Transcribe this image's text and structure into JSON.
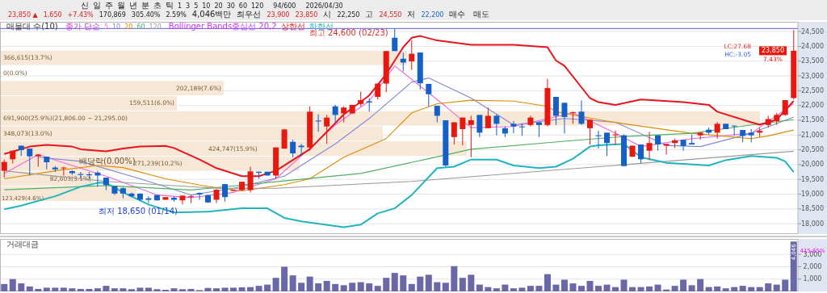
{
  "chart_data": [
    {
      "type": "other",
      "annotations": [
        "신",
        "일",
        "주",
        "월",
        "년",
        "분",
        "초",
        "틱",
        "1",
        "3",
        "5",
        "10",
        "20",
        "30",
        "60",
        "120",
        "94/600",
        "2026/04/30",
        "23,850 ▲",
        "1,650",
        "+7.43%",
        "170,869",
        "305.40%",
        "2.59%",
        "4,046백만",
        "최우선",
        "23,900",
        "23,850",
        "시",
        "22,250",
        "고",
        "24,550",
        "저",
        "22,200",
        "매수",
        "매도"
      ]
    },
    {
      "type": "candlestick",
      "title": "매물대 수(10)",
      "legend_title": "종가 단순",
      "legend": "top left",
      "grid": "y",
      "tick_labels": "y",
      "categories": [
        null,
        null,
        null,
        null,
        null,
        null,
        null,
        null,
        null,
        null,
        null,
        null,
        null,
        null,
        null,
        null,
        null,
        null,
        null,
        null,
        null,
        null,
        null,
        null,
        null,
        null,
        null,
        null,
        null,
        null,
        null,
        null,
        null,
        null,
        null,
        null,
        null,
        null,
        null,
        null,
        null,
        null,
        null,
        null,
        null,
        null,
        null,
        null,
        null,
        null,
        null,
        null,
        null,
        null,
        null,
        null,
        null,
        null,
        null,
        null,
        null,
        null,
        null,
        null,
        null,
        null,
        null,
        null,
        null,
        null,
        null,
        null,
        null,
        null,
        null,
        null,
        null,
        null,
        null,
        null,
        null,
        null,
        null,
        null,
        null,
        null,
        null,
        null,
        null,
        null,
        null,
        null,
        null,
        null
      ],
      "ohlc": [
        [
          19790,
          20170,
          19560,
          20090
        ],
        [
          20180,
          20470,
          20040,
          20470
        ],
        [
          20640,
          20640,
          20290,
          20490
        ],
        [
          20540,
          20540,
          19630,
          20280
        ],
        [
          20280,
          20340,
          19930,
          20340
        ],
        [
          20270,
          20270,
          19840,
          20080
        ],
        [
          19900,
          19950,
          19750,
          19840
        ],
        [
          19880,
          19930,
          19630,
          19900
        ],
        [
          19780,
          19810,
          19650,
          19710
        ],
        [
          19680,
          19750,
          19540,
          19650
        ],
        [
          19670,
          19750,
          19520,
          19640
        ],
        [
          19730,
          19790,
          19250,
          19630
        ],
        [
          19560,
          19560,
          19140,
          19310
        ],
        [
          19270,
          19270,
          18970,
          19020
        ],
        [
          19200,
          19230,
          18860,
          19020
        ],
        [
          19020,
          19050,
          18900,
          18930
        ],
        [
          19020,
          19020,
          18770,
          18810
        ],
        [
          18860,
          18930,
          18700,
          18810
        ],
        [
          18970,
          18970,
          18790,
          18790
        ],
        [
          18810,
          18900,
          18810,
          18900
        ],
        [
          18880,
          18930,
          18750,
          18810
        ],
        [
          18790,
          18950,
          18650,
          18950
        ],
        [
          18920,
          18970,
          18700,
          18930
        ],
        [
          19040,
          19060,
          18810,
          18990
        ],
        [
          18970,
          18970,
          18700,
          18720
        ],
        [
          18810,
          19170,
          18700,
          19150
        ],
        [
          19340,
          19340,
          18750,
          18900
        ],
        [
          19110,
          19150,
          19110,
          19150
        ],
        [
          19140,
          19420,
          19110,
          19420
        ],
        [
          19140,
          19930,
          19060,
          19770
        ],
        [
          19760,
          19760,
          19520,
          19720
        ],
        [
          19760,
          19760,
          19630,
          19630
        ],
        [
          19630,
          20580,
          19520,
          20580
        ],
        [
          20540,
          21190,
          20540,
          21190
        ],
        [
          20770,
          20840,
          20250,
          20380
        ],
        [
          20640,
          20700,
          20290,
          20590
        ],
        [
          20580,
          21970,
          20470,
          21790
        ],
        [
          21490,
          21700,
          21110,
          21460
        ],
        [
          21290,
          21680,
          20700,
          21590
        ],
        [
          21970,
          22020,
          21400,
          21680
        ],
        [
          21730,
          21970,
          21430,
          21930
        ],
        [
          21730,
          22020,
          21730,
          22020
        ],
        [
          22050,
          22470,
          21970,
          22180
        ],
        [
          22140,
          22250,
          21790,
          22100
        ],
        [
          22290,
          22740,
          22200,
          22740
        ],
        [
          22740,
          23840,
          22450,
          23840
        ],
        [
          24290,
          24600,
          23840,
          23840
        ],
        [
          23580,
          23790,
          23150,
          23450
        ],
        [
          23490,
          24200,
          23200,
          23750
        ],
        [
          23790,
          23790,
          22540,
          22750
        ],
        [
          22730,
          22730,
          21970,
          22380
        ],
        [
          21990,
          21990,
          21430,
          21650
        ],
        [
          21500,
          21500,
          19930,
          19970
        ],
        [
          20930,
          21430,
          20680,
          21430
        ],
        [
          21200,
          21590,
          20650,
          21590
        ],
        [
          21340,
          21650,
          20250,
          21500
        ],
        [
          21680,
          21680,
          20930,
          21080
        ],
        [
          21230,
          21930,
          21230,
          21650
        ],
        [
          21650,
          21700,
          20990,
          21380
        ],
        [
          21230,
          21290,
          20930,
          21050
        ],
        [
          21380,
          21470,
          21060,
          21290
        ],
        [
          21290,
          21380,
          20970,
          21260
        ],
        [
          21340,
          21650,
          21290,
          21590
        ],
        [
          21430,
          21430,
          20930,
          21340
        ],
        [
          21340,
          22900,
          21290,
          22590
        ],
        [
          22290,
          22290,
          21340,
          21650
        ],
        [
          22090,
          22090,
          21050,
          21610
        ],
        [
          21750,
          21790,
          21380,
          21770
        ],
        [
          21790,
          22170,
          21340,
          21380
        ],
        [
          21230,
          21520,
          20680,
          21520
        ],
        [
          20990,
          21150,
          20540,
          20970
        ],
        [
          21080,
          21080,
          20290,
          20730
        ],
        [
          20990,
          21150,
          20680,
          21020
        ],
        [
          20990,
          21020,
          19950,
          19950
        ],
        [
          20270,
          20640,
          20250,
          20640
        ],
        [
          20680,
          20680,
          20050,
          20180
        ],
        [
          20470,
          21110,
          20150,
          20730
        ],
        [
          20990,
          20990,
          20470,
          20680
        ],
        [
          20640,
          20700,
          20340,
          20700
        ],
        [
          20730,
          20880,
          20560,
          20820
        ],
        [
          20840,
          20840,
          20470,
          20630
        ],
        [
          20730,
          21020,
          20680,
          20680
        ],
        [
          20990,
          21080,
          20840,
          21080
        ],
        [
          21180,
          21260,
          21020,
          21080
        ],
        [
          21080,
          21440,
          20880,
          21380
        ],
        [
          21380,
          21380,
          21200,
          21200
        ],
        [
          21320,
          21320,
          20990,
          21300
        ],
        [
          21170,
          21170,
          20750,
          20970
        ],
        [
          21080,
          21200,
          20750,
          20990
        ],
        [
          21080,
          21250,
          20930,
          21140
        ],
        [
          21340,
          21650,
          21250,
          21540
        ],
        [
          21470,
          21750,
          21340,
          21680
        ],
        [
          21680,
          22180,
          21650,
          22180
        ],
        [
          22250,
          24550,
          22200,
          23850
        ]
      ],
      "colors": [
        "#e8180f",
        "#e8180f",
        "#1560c8",
        "#1560c8",
        "#e8180f",
        "#1560c8",
        "#1560c8",
        "#e8180f",
        "#1560c8",
        "#1560c8",
        "#1560c8",
        "#1560c8",
        "#1560c8",
        "#1560c8",
        "#1560c8",
        "#1560c8",
        "#1560c8",
        "#1560c8",
        "#1560c8",
        "#e8180f",
        "#1560c8",
        "#e8180f",
        "#e8180f",
        "#1560c8",
        "#1560c8",
        "#e8180f",
        "#1560c8",
        "#e8180f",
        "#e8180f",
        "#e8180f",
        "#1560c8",
        "#1560c8",
        "#e8180f",
        "#e8180f",
        "#1560c8",
        "#1560c8",
        "#e8180f",
        "#1560c8",
        "#e8180f",
        "#1560c8",
        "#e8180f",
        "#e8180f",
        "#e8180f",
        "#1560c8",
        "#e8180f",
        "#e8180f",
        "#1560c8",
        "#1560c8",
        "#e8180f",
        "#1560c8",
        "#1560c8",
        "#1560c8",
        "#1560c8",
        "#e8180f",
        "#e8180f",
        "#e8180f",
        "#1560c8",
        "#e8180f",
        "#1560c8",
        "#1560c8",
        "#1560c8",
        "#1560c8",
        "#e8180f",
        "#1560c8",
        "#e8180f",
        "#1560c8",
        "#1560c8",
        "#e8180f",
        "#1560c8",
        "#e8180f",
        "#1560c8",
        "#1560c8",
        "#e8180f",
        "#1560c8",
        "#e8180f",
        "#1560c8",
        "#e8180f",
        "#1560c8",
        "#e8180f",
        "#e8180f",
        "#1560c8",
        "#1560c8",
        "#e8180f",
        "#1560c8",
        "#e8180f",
        "#1560c8",
        "#1560c8",
        "#1560c8",
        "#1560c8",
        "#e8180f",
        "#e8180f",
        "#e8180f",
        "#e8180f",
        "#e8180f"
      ],
      "series": [
        {
          "type": "line",
          "name": "5",
          "color": "#ee66dd",
          "values": [
            19700,
            null,
            null,
            null,
            20340,
            null,
            null,
            null,
            19970,
            null,
            null,
            null,
            19610,
            null,
            null,
            null,
            null,
            null,
            18970,
            null,
            null,
            null,
            18880,
            null,
            null,
            null,
            null,
            19060,
            null,
            null,
            null,
            null,
            19520,
            null,
            null,
            null,
            null,
            null,
            null,
            21340,
            null,
            null,
            null,
            22150,
            null,
            null,
            23340,
            null,
            null,
            null,
            null,
            null,
            21970,
            null,
            null,
            21250,
            null,
            null,
            null,
            null,
            21290,
            null,
            null,
            null,
            null,
            null,
            null,
            21750,
            null,
            null,
            null,
            null,
            21060,
            null,
            null,
            20610,
            null,
            null,
            null,
            null,
            null,
            20880,
            null,
            null,
            null,
            null,
            null,
            null,
            21060,
            null,
            null,
            null,
            null,
            22060
          ]
        },
        {
          "type": "line",
          "name": "10",
          "color": "#8088d8",
          "values": [
            null,
            null,
            null,
            null,
            20250,
            null,
            null,
            null,
            null,
            20110,
            null,
            null,
            null,
            null,
            null,
            null,
            19520,
            null,
            null,
            null,
            null,
            null,
            18970,
            null,
            null,
            null,
            null,
            19200,
            null,
            null,
            null,
            null,
            null,
            19610,
            null,
            null,
            null,
            null,
            null,
            20700,
            null,
            null,
            null,
            21560,
            null,
            null,
            null,
            null,
            22790,
            null,
            22930,
            null,
            null,
            null,
            null,
            22250,
            null,
            null,
            null,
            null,
            21340,
            null,
            null,
            null,
            null,
            null,
            21560,
            null,
            null,
            null,
            null,
            null,
            21430,
            null,
            null,
            null,
            null,
            null,
            20650,
            null,
            null,
            null,
            20610,
            null,
            null,
            null,
            null,
            null,
            21060,
            null,
            null,
            null,
            null,
            21610
          ]
        },
        {
          "type": "line",
          "name": "20",
          "color": "#e08a00",
          "values": [
            19520,
            null,
            null,
            null,
            null,
            null,
            19790,
            null,
            null,
            null,
            null,
            19970,
            null,
            null,
            19900,
            null,
            null,
            null,
            null,
            19520,
            null,
            null,
            null,
            null,
            19260,
            null,
            null,
            null,
            19110,
            null,
            null,
            null,
            null,
            19320,
            null,
            null,
            19520,
            null,
            null,
            null,
            20250,
            null,
            null,
            null,
            null,
            20880,
            null,
            null,
            21750,
            null,
            null,
            22060,
            null,
            null,
            null,
            22180,
            null,
            null,
            null,
            null,
            22150,
            null,
            null,
            null,
            21970,
            21790,
            null,
            null,
            null,
            null,
            21520,
            null,
            null,
            21380,
            null,
            null,
            null,
            null,
            null,
            null,
            null,
            21060,
            null,
            null,
            null,
            null,
            null,
            null,
            20880,
            null,
            20970,
            null,
            null,
            21170
          ]
        },
        {
          "type": "line",
          "name": "60",
          "color": "#4fb060",
          "values": [
            19150,
            null,
            null,
            null,
            null,
            null,
            null,
            null,
            null,
            null,
            null,
            null,
            19290,
            null,
            null,
            null,
            null,
            null,
            null,
            null,
            null,
            null,
            19140,
            null,
            null,
            null,
            null,
            null,
            null,
            null,
            null,
            null,
            null,
            19450,
            null,
            null,
            null,
            null,
            null,
            null,
            null,
            null,
            19700,
            null,
            null,
            null,
            null,
            null,
            null,
            null,
            20200,
            null,
            null,
            null,
            null,
            20520,
            null,
            null,
            null,
            null,
            null,
            null,
            null,
            null,
            null,
            null,
            20790,
            null,
            null,
            null,
            null,
            null,
            null,
            20950,
            null,
            null,
            null,
            null,
            null,
            null,
            null,
            21060,
            null,
            null,
            null,
            null,
            null,
            null,
            21340,
            null,
            null,
            null,
            null,
            21520
          ]
        },
        {
          "type": "line",
          "name": "120",
          "color": "#999999",
          "values": [
            19790,
            null,
            null,
            null,
            null,
            null,
            null,
            null,
            null,
            null,
            null,
            null,
            19430,
            null,
            null,
            null,
            null,
            null,
            null,
            null,
            null,
            null,
            null,
            null,
            null,
            19200,
            null,
            null,
            null,
            null,
            null,
            null,
            19200,
            null,
            null,
            null,
            null,
            null,
            null,
            null,
            null,
            null,
            null,
            null,
            null,
            null,
            null,
            null,
            19430,
            null,
            null,
            null,
            null,
            null,
            null,
            null,
            null,
            null,
            null,
            null,
            null,
            null,
            null,
            null,
            null,
            null,
            19840,
            null,
            null,
            null,
            null,
            null,
            null,
            null,
            null,
            null,
            null,
            null,
            20110,
            null,
            null,
            null,
            null,
            null,
            null,
            null,
            null,
            null,
            null,
            null,
            null,
            null,
            null,
            20450
          ]
        },
        {
          "type": "line",
          "name": "상한선",
          "color": "#e8141e",
          "values": [
            20360,
            null,
            null,
            20610,
            null,
            20670,
            null,
            null,
            20610,
            20520,
            null,
            null,
            20450,
            null,
            20540,
            null,
            20610,
            null,
            null,
            20630,
            20560,
            null,
            null,
            20170,
            null,
            19880,
            null,
            null,
            19610,
            null,
            19610,
            null,
            19790,
            null,
            null,
            null,
            20520,
            null,
            null,
            null,
            21700,
            null,
            null,
            22340,
            null,
            23060,
            null,
            23970,
            24290,
            24350,
            null,
            24200,
            null,
            null,
            null,
            24050,
            null,
            null,
            null,
            null,
            24050,
            null,
            null,
            null,
            23970,
            23520,
            23340,
            null,
            null,
            22250,
            22110,
            null,
            22020,
            null,
            null,
            22200,
            null,
            null,
            null,
            null,
            22110,
            null,
            null,
            22020,
            21790,
            null,
            null,
            null,
            21430,
            21350,
            null,
            21520,
            null,
            22150
          ]
        },
        {
          "type": "line",
          "name": "하한선",
          "color": "#20b4c0",
          "values": [
            18490,
            null,
            18610,
            null,
            null,
            null,
            18930,
            null,
            null,
            19250,
            null,
            19380,
            19380,
            null,
            19060,
            null,
            null,
            18650,
            null,
            null,
            18380,
            null,
            null,
            null,
            18410,
            null,
            null,
            null,
            18520,
            null,
            null,
            18520,
            null,
            18200,
            null,
            18080,
            null,
            null,
            null,
            null,
            17880,
            null,
            17970,
            null,
            18350,
            null,
            18520,
            null,
            18970,
            null,
            null,
            19880,
            null,
            19930,
            null,
            20170,
            null,
            null,
            20170,
            null,
            19970,
            null,
            null,
            19880,
            null,
            19930,
            null,
            20200,
            null,
            20610,
            20650,
            null,
            null,
            20700,
            null,
            20250,
            null,
            null,
            20060,
            null,
            null,
            null,
            null,
            19970,
            null,
            20150,
            null,
            null,
            20290,
            null,
            null,
            20230,
            20110,
            19750
          ]
        }
      ],
      "ylim": [
        17650,
        24830
      ],
      "yticks": [
        {
          "value": 18000,
          "label": "18,000"
        },
        {
          "value": 18500,
          "label": "18,500"
        },
        {
          "value": 19000,
          "label": "19,000"
        },
        {
          "value": 19500,
          "label": "19,500"
        },
        {
          "value": 20000,
          "label": "20,000"
        },
        {
          "value": 20500,
          "label": "20,500"
        },
        {
          "value": 21000,
          "label": "21,000"
        },
        {
          "value": 21500,
          "label": "21,500"
        },
        {
          "value": 22000,
          "label": "22,000"
        },
        {
          "value": 22500,
          "label": "22,500"
        },
        {
          "value": 23000,
          "label": "23,000"
        },
        {
          "value": 23500,
          "label": "23,500"
        },
        {
          "value": 24000,
          "label": "24,000"
        },
        {
          "value": 24500,
          "label": "24,500"
        }
      ],
      "bands": [
        {
          "axis": "y",
          "from": 23339,
          "to": 23850,
          "label": "366,615(13.7%)",
          "color": "#f6e7d6"
        },
        {
          "axis": "y",
          "from": 22317,
          "to": 22828,
          "label": "202,189(7.6%)",
          "color": "#f6e7d6"
        },
        {
          "axis": "y",
          "from": 21806,
          "to": 22317,
          "label": "159,511(6.0%)",
          "color": "#f6e7d6"
        },
        {
          "axis": "y",
          "from": 21295,
          "to": 21806,
          "label": "691,900(25.9%)(21,806.00 ~ 21,295.00)",
          "color": "#f6e7d6"
        },
        {
          "axis": "y",
          "from": 20784,
          "to": 21295,
          "label": "348,073(13.0%)",
          "color": "#f6e7d6"
        },
        {
          "axis": "y",
          "from": 20273,
          "to": 20784,
          "label": "424,747(15.9%)",
          "color": "#f6e7d6"
        },
        {
          "axis": "y",
          "from": 19762,
          "to": 20273,
          "label": "271,239(10.2%)",
          "color": "#f6e7d6"
        },
        {
          "axis": "y",
          "from": 19251,
          "to": 19762,
          "label": "82,603(3.1%)",
          "color": "#f6e7d6"
        },
        {
          "axis": "y",
          "from": 18740,
          "to": 19251,
          "label": "123,429(4.6%)",
          "color": "#f6e7d6"
        }
      ],
      "ref_lines": [
        {
          "axis": "y",
          "value": 24600,
          "color": "#7b7bea"
        }
      ],
      "annotations": [
        "Bollinger Bands중심선 20,2",
        {
          "text": "최고 24,600 (02/23)",
          "y": 24600
        },
        {
          "text": "최저 18,650 (01/14)",
          "y": 18650
        },
        "배당락(0.00%)",
        {
          "text": "23,850",
          "y": 23850
        },
        "7.43%",
        "LC:27.68",
        "HC:-3.05",
        "0(0.0%)"
      ]
    },
    {
      "type": "bar",
      "title": "거래대금",
      "grid": "y",
      "tick_labels": "y",
      "color": "#6a68a8",
      "categories": [
        null,
        null,
        null,
        null,
        null,
        null,
        null,
        null,
        null,
        null,
        null,
        null,
        null,
        null,
        null,
        null,
        null,
        null,
        null,
        null,
        null,
        null,
        null,
        null,
        null,
        null,
        null,
        null,
        null,
        null,
        null,
        null,
        null,
        null,
        null,
        null,
        null,
        null,
        null,
        null,
        null,
        null,
        null,
        null,
        null,
        null,
        null,
        null,
        null,
        null,
        null,
        null,
        null,
        null,
        null,
        null,
        null,
        null,
        null,
        null,
        null,
        null,
        null,
        null,
        null,
        null,
        null,
        null,
        null,
        null,
        null,
        null,
        null,
        null,
        null,
        null,
        null,
        null,
        null,
        null,
        null,
        null,
        null,
        null,
        null,
        null,
        null,
        null,
        null,
        null,
        null,
        null,
        null,
        null
      ],
      "values": [
        600,
        1000,
        650,
        400,
        200,
        300,
        300,
        300,
        250,
        200,
        200,
        250,
        450,
        250,
        250,
        180,
        300,
        300,
        180,
        130,
        250,
        180,
        200,
        100,
        280,
        250,
        300,
        300,
        330,
        350,
        450,
        550,
        1100,
        2000,
        1300,
        700,
        1200,
        650,
        850,
        600,
        500,
        700,
        750,
        650,
        450,
        1100,
        1500,
        1300,
        600,
        1200,
        1350,
        750,
        700,
        2050,
        1100,
        1350,
        550,
        350,
        250,
        550,
        250,
        300,
        450,
        450,
        1400,
        550,
        950,
        650,
        450,
        850,
        450,
        550,
        350,
        950,
        350,
        350,
        400,
        550,
        150,
        450,
        950,
        500,
        1000,
        350,
        400,
        250,
        350,
        450,
        350,
        350,
        650,
        550,
        950,
        4046
      ],
      "value_labels": [
        null,
        null,
        null,
        null,
        null,
        null,
        null,
        null,
        null,
        null,
        null,
        null,
        null,
        null,
        null,
        null,
        null,
        null,
        null,
        null,
        null,
        null,
        null,
        null,
        null,
        null,
        null,
        null,
        null,
        null,
        null,
        null,
        null,
        null,
        null,
        null,
        null,
        null,
        null,
        null,
        null,
        null,
        null,
        null,
        null,
        null,
        null,
        null,
        null,
        null,
        null,
        null,
        null,
        null,
        null,
        null,
        null,
        null,
        null,
        null,
        null,
        null,
        null,
        null,
        null,
        null,
        null,
        null,
        null,
        null,
        null,
        null,
        null,
        null,
        null,
        null,
        null,
        null,
        null,
        null,
        null,
        null,
        null,
        null,
        null,
        null,
        null,
        null,
        null,
        null,
        null,
        null,
        null,
        "4,046"
      ],
      "ylim": [
        0,
        4260
      ],
      "yticks": [
        {
          "value": 1000,
          "label": "1,000"
        },
        {
          "value": 2000,
          "label": "2,000"
        },
        {
          "value": 3000,
          "label": "3,000"
        }
      ],
      "annotations": [
        "415.65%"
      ]
    }
  ]
}
